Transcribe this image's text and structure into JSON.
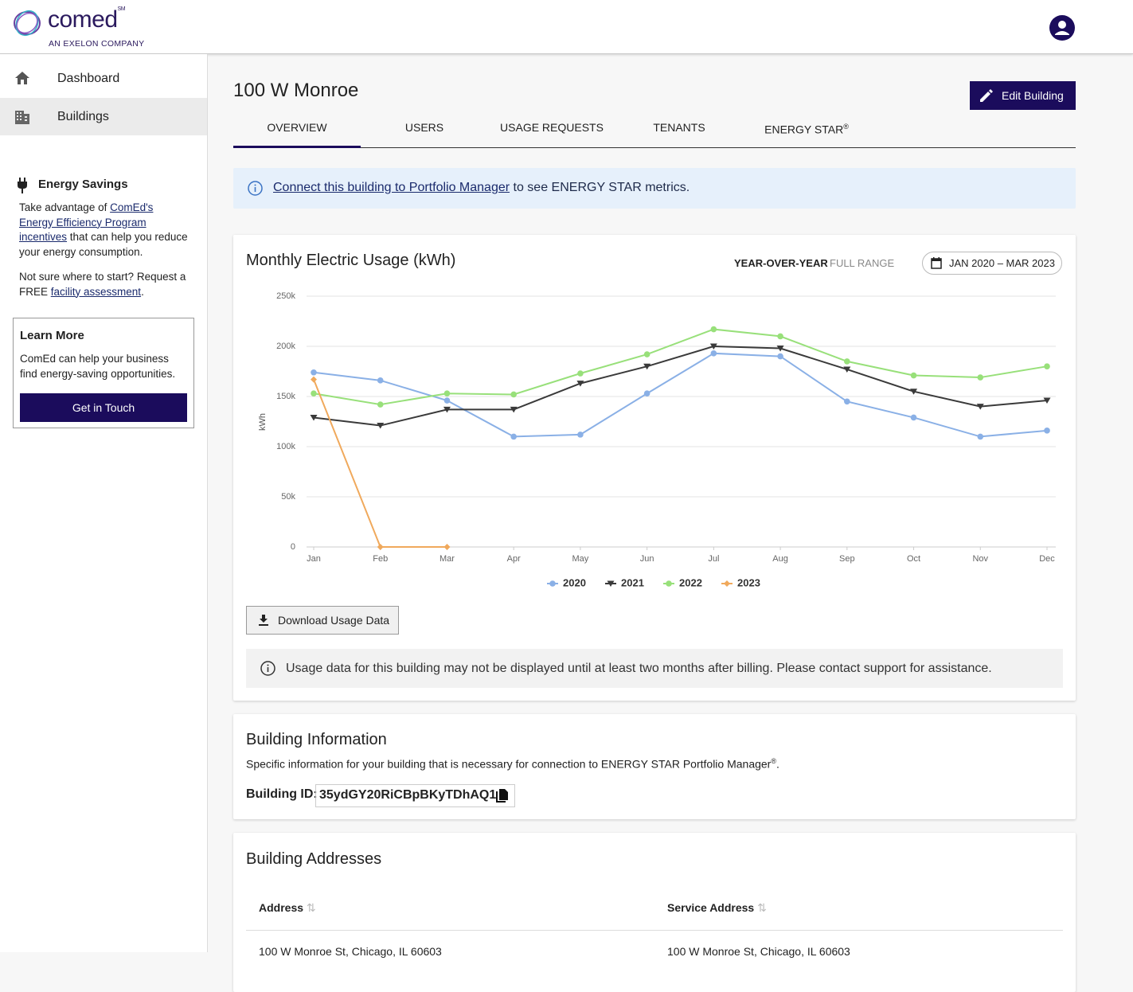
{
  "header": {
    "logo": "comed",
    "logo_mark": "SM",
    "tagline": "AN EXELON COMPANY"
  },
  "sidebar": {
    "nav": [
      "Dashboard",
      "Buildings"
    ],
    "energy_savings": {
      "title": "Energy Savings",
      "p1_before": "Take advantage of ",
      "p1_link": "ComEd's Energy Efficiency Program incentives",
      "p1_after": " that can help you reduce your energy consumption.",
      "p2_before": "Not sure where to start? Request a FREE ",
      "p2_link": "facility assessment",
      "p2_after": "."
    },
    "learn_more": {
      "title": "Learn More",
      "text": "ComEd can help your business find energy-saving opportunities.",
      "button": "Get in Touch"
    }
  },
  "main": {
    "title": "100 W Monroe",
    "edit_button": "Edit Building",
    "tabs": [
      {
        "label": "OVERVIEW"
      },
      {
        "label": "USERS"
      },
      {
        "label": "USAGE REQUESTS"
      },
      {
        "label": "TENANTS"
      },
      {
        "label": "ENERGY STAR",
        "sup": "®"
      }
    ],
    "banner": {
      "link": "Connect this building to Portfolio Manager",
      "text": " to see ENERGY STAR metrics."
    }
  },
  "usage_card": {
    "toggle": [
      "YEAR-OVER-YEAR",
      "FULL RANGE"
    ],
    "date_range": "JAN 2020 – MAR 2023",
    "download_button": "Download Usage Data",
    "note": "Usage data for this building may not be displayed until at least two months after billing. Please contact support for assistance."
  },
  "chart_data": {
    "type": "line",
    "title": "Monthly Electric Usage (kWh)",
    "y_label": "kWh",
    "categories": [
      "Jan",
      "Feb",
      "Mar",
      "Apr",
      "May",
      "Jun",
      "Jul",
      "Aug",
      "Sep",
      "Oct",
      "Nov",
      "Dec"
    ],
    "ylim": [
      0,
      250000
    ],
    "yticks": [
      0,
      {
        "value": 50000,
        "label": "50k"
      },
      {
        "value": 100000,
        "label": "100k"
      },
      {
        "value": 150000,
        "label": "150k"
      },
      {
        "value": 200000,
        "label": "200k"
      },
      {
        "value": 250000,
        "label": "250k"
      }
    ],
    "grid": true,
    "series": [
      {
        "name": "2020",
        "color": "#8ab0e6",
        "marker": "circle",
        "values": [
          174000,
          166000,
          146000,
          110000,
          112000,
          153000,
          193000,
          190000,
          145000,
          129000,
          110000,
          116000
        ]
      },
      {
        "name": "2021",
        "color": "#3a3a3a",
        "marker": "triangle-down",
        "values": [
          129000,
          121000,
          137000,
          137000,
          163000,
          180000,
          200000,
          198000,
          177000,
          155000,
          140000,
          146000
        ]
      },
      {
        "name": "2022",
        "color": "#98e07a",
        "marker": "circle",
        "values": [
          153000,
          142000,
          153000,
          152000,
          173000,
          192000,
          217000,
          210000,
          185000,
          171000,
          169000,
          180000
        ]
      },
      {
        "name": "2023",
        "color": "#f0a95c",
        "marker": "diamond",
        "values": [
          167000,
          0,
          0,
          null,
          null,
          null,
          null,
          null,
          null,
          null,
          null,
          null
        ]
      }
    ]
  },
  "building_info": {
    "title": "Building Information",
    "description": "Specific information for your building that is necessary for connection to ENERGY STAR Portfolio Manager",
    "description_sup": "®",
    "description_end": ".",
    "id_label": "Building ID:",
    "id_value": "35ydGY20RiCBpBKyTDhAQ1"
  },
  "addresses": {
    "title": "Building Addresses",
    "columns": [
      "Address",
      "Service Address"
    ],
    "rows": [
      [
        "100 W Monroe St, Chicago, IL 60603",
        "100 W Monroe St, Chicago, IL 60603"
      ]
    ]
  }
}
